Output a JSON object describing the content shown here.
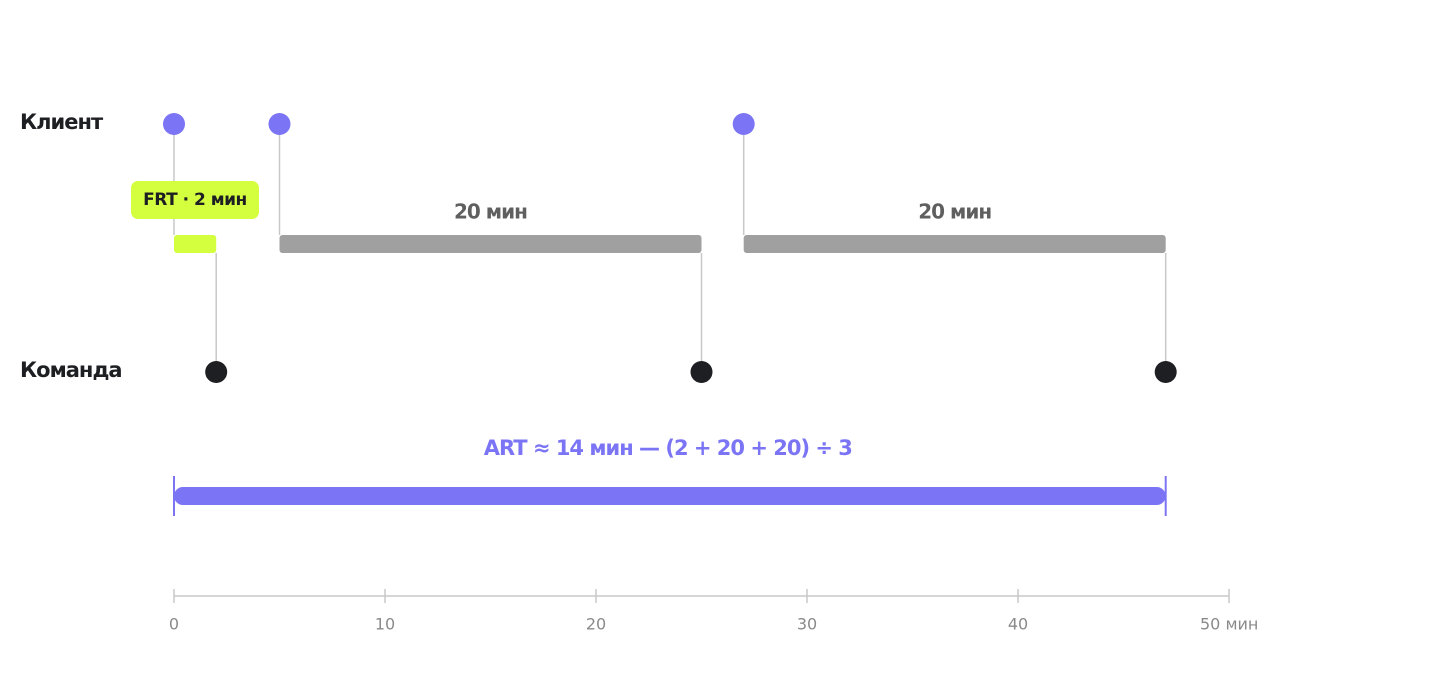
{
  "rows": {
    "client": "Клиент",
    "team": "Команда"
  },
  "axis": {
    "xlim": [
      0,
      50
    ],
    "xticks": [
      0,
      10,
      20,
      30,
      40,
      {
        "value": 50,
        "label": "50 мин"
      }
    ]
  },
  "client_events": [
    0,
    5,
    27
  ],
  "team_events": [
    2,
    25,
    47
  ],
  "client_color": "#7b74f5",
  "team_color": "#1e1f23",
  "intervals": [
    {
      "label": "FRT · 2 мин",
      "start": 0,
      "end": 2,
      "color": "#d4ff3f"
    },
    {
      "label": "20 мин",
      "start": 5,
      "end": 25,
      "color": "#a0a0a0"
    },
    {
      "label": "20 мин",
      "start": 27,
      "end": 47,
      "color": "#a0a0a0"
    }
  ],
  "art": {
    "label": "ART ≈ 14 мин — (2 + 20 + 20) ÷ 3",
    "start": 0,
    "end": 47,
    "color": "#7b74f5"
  }
}
